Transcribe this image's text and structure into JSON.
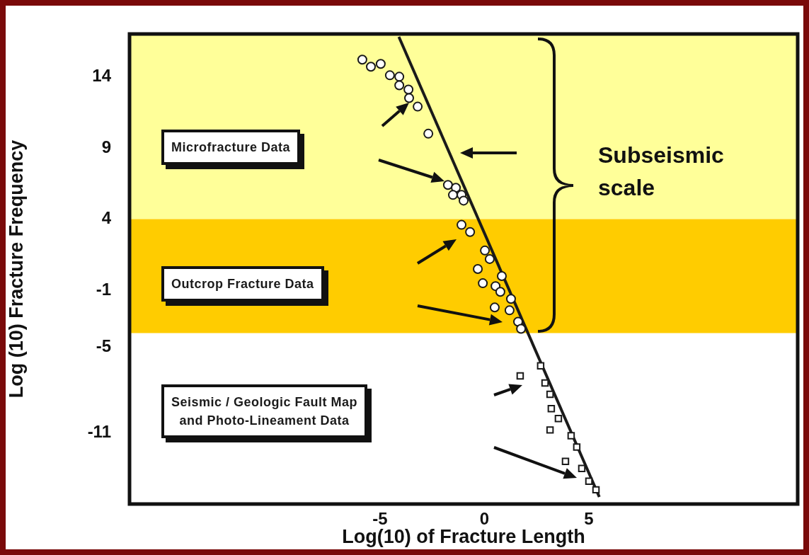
{
  "chart_data": {
    "type": "scatter",
    "xlabel": "Log(10) of Fracture Length",
    "ylabel": "Log (10) Fracture Frequency",
    "xlim": [
      -17,
      15
    ],
    "ylim": [
      -16,
      17
    ],
    "xticks": [
      -5,
      0,
      5
    ],
    "yticks": [
      14,
      9,
      4,
      -1,
      -5,
      -11
    ],
    "grid": false,
    "legend": false,
    "series": [
      {
        "type": "scatter",
        "color": "#1a1a1a",
        "marker": "circle",
        "x": [
          -5.85,
          -5.44,
          -4.97,
          -4.53,
          -4.08,
          -4.08,
          -3.64,
          -3.61,
          -3.2,
          -2.69,
          -1.75,
          -1.37,
          -1.51,
          -1.1,
          -1.0
        ],
        "values": [
          15.2,
          14.7,
          14.9,
          14.1,
          14.0,
          13.4,
          13.1,
          12.5,
          11.9,
          10.0,
          6.4,
          6.2,
          5.7,
          5.7,
          5.3
        ]
      },
      {
        "type": "scatter",
        "color": "#1a1a1a",
        "marker": "circle",
        "x": [
          -1.1,
          -0.69,
          0.02,
          0.25,
          -0.32,
          0.83,
          -0.08,
          0.53,
          0.76,
          1.27,
          0.49,
          1.2,
          1.61,
          1.75
        ],
        "values": [
          3.6,
          3.1,
          1.8,
          1.2,
          0.5,
          0.0,
          -0.5,
          -0.7,
          -1.1,
          -1.6,
          -2.2,
          -2.4,
          -3.2,
          -3.7
        ]
      },
      {
        "type": "scatter",
        "color": "#1a1a1a",
        "marker": "square",
        "x": [
          1.71,
          2.69,
          2.9,
          3.14,
          3.2,
          3.54,
          3.14,
          4.15,
          4.42,
          3.88,
          4.66,
          5.0,
          5.34
        ],
        "values": [
          -7.0,
          -6.3,
          -7.5,
          -8.3,
          -9.3,
          -10.0,
          -10.8,
          -11.2,
          -12.0,
          -13.0,
          -13.5,
          -14.4,
          -15.0
        ]
      },
      {
        "type": "line",
        "color": "#1a1a1a",
        "x": [
          -4.1,
          5.5
        ],
        "values": [
          16.8,
          -15.5
        ]
      }
    ],
    "bands": [
      {
        "axis": "y",
        "from": 4,
        "to": 17,
        "color": "#ffff99"
      },
      {
        "axis": "y",
        "from": -4,
        "to": 4,
        "color": "#ffcc00"
      }
    ],
    "annotations": [
      "Microfracture Data",
      "Outcrop Fracture Data",
      "Seismic / Geologic Fault Map\nand Photo-Lineament Data",
      "Subseismic\nscale"
    ]
  }
}
